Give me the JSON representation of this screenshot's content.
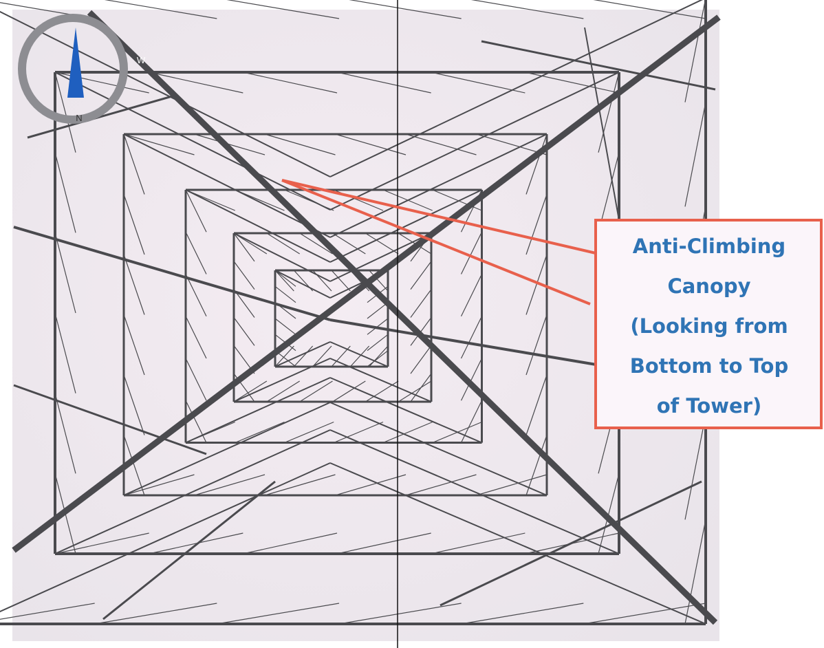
{
  "compass": {
    "north": "N",
    "west": "W"
  },
  "annotation": {
    "lines": [
      "Anti-Climbing",
      "Canopy",
      "(Looking from",
      "Bottom to Top",
      "of Tower)"
    ]
  }
}
